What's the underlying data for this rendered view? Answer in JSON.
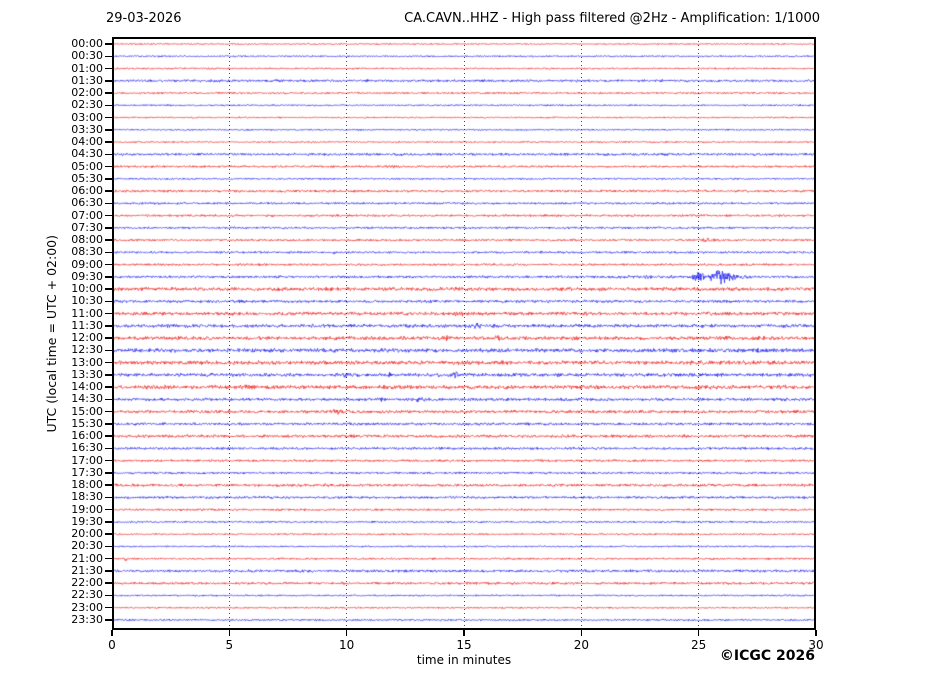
{
  "header": {
    "date_label": "29-03-2026",
    "title": "CA.CAVN..HHZ - High pass filtered @2Hz - Amplification: 1/1000"
  },
  "footer": {
    "copyright": "©ICGC 2026"
  },
  "chart_data": {
    "type": "line",
    "subtype": "helicorder-seismogram-day-plot",
    "title": "CA.CAVN..HHZ - High pass filtered @2Hz - Amplification: 1/1000",
    "date": "29-03-2026",
    "station": "CA.CAVN..HHZ",
    "filter": "High pass filtered @2Hz",
    "amplification": "1/1000",
    "xlabel": "time in minutes",
    "ylabel": "UTC (local time = UTC + 02:00)",
    "xlim": [
      0,
      30
    ],
    "x_ticks": [
      0,
      5,
      10,
      15,
      20,
      25,
      30
    ],
    "grid_minutes": [
      5,
      10,
      15,
      20,
      25
    ],
    "grid_style": "vertical dotted",
    "minutes_per_row": 30,
    "trace_colors": {
      "hour_rows": "#ee1111",
      "half_hour_rows": "#1111ee"
    },
    "event": {
      "row": "09:30",
      "start_minute": 24.5,
      "end_minute": 27.2,
      "description": "largest seismic signal of the day, blue spindle-shaped burst near minutes 25-26.5 on the 09:30 UTC line"
    },
    "bursts_format": "[start_minute, end_minute, amplitude_px]",
    "rows": [
      {
        "label": "00:00",
        "color": "red",
        "noise": 0.55,
        "bursts": []
      },
      {
        "label": "00:30",
        "color": "blue",
        "noise": 0.6,
        "bursts": []
      },
      {
        "label": "01:00",
        "color": "red",
        "noise": 0.6,
        "bursts": []
      },
      {
        "label": "01:30",
        "color": "blue",
        "noise": 0.95,
        "bursts": []
      },
      {
        "label": "02:00",
        "color": "red",
        "noise": 0.75,
        "bursts": []
      },
      {
        "label": "02:30",
        "color": "blue",
        "noise": 0.6,
        "bursts": []
      },
      {
        "label": "03:00",
        "color": "red",
        "noise": 0.55,
        "bursts": []
      },
      {
        "label": "03:30",
        "color": "blue",
        "noise": 0.6,
        "bursts": []
      },
      {
        "label": "04:00",
        "color": "red",
        "noise": 0.6,
        "bursts": []
      },
      {
        "label": "04:30",
        "color": "blue",
        "noise": 0.95,
        "bursts": []
      },
      {
        "label": "05:00",
        "color": "red",
        "noise": 0.8,
        "bursts": [
          [
            11.5,
            12.4,
            1.3
          ]
        ]
      },
      {
        "label": "05:30",
        "color": "blue",
        "noise": 0.65,
        "bursts": []
      },
      {
        "label": "06:00",
        "color": "red",
        "noise": 0.9,
        "bursts": []
      },
      {
        "label": "06:30",
        "color": "blue",
        "noise": 0.8,
        "bursts": []
      },
      {
        "label": "07:00",
        "color": "red",
        "noise": 0.85,
        "bursts": []
      },
      {
        "label": "07:30",
        "color": "blue",
        "noise": 0.8,
        "bursts": []
      },
      {
        "label": "08:00",
        "color": "red",
        "noise": 0.8,
        "bursts": [
          [
            24.7,
            26.0,
            1.7
          ]
        ]
      },
      {
        "label": "08:30",
        "color": "blue",
        "noise": 0.8,
        "bursts": [
          [
            9.2,
            9.6,
            1.3
          ]
        ]
      },
      {
        "label": "09:00",
        "color": "red",
        "noise": 0.8,
        "bursts": []
      },
      {
        "label": "09:30",
        "color": "blue",
        "noise": 0.9,
        "bursts": [
          [
            21.0,
            24.5,
            1.1
          ],
          [
            24.5,
            25.4,
            4.5
          ],
          [
            25.3,
            25.8,
            3.2
          ],
          [
            25.6,
            26.3,
            8.5
          ],
          [
            26.1,
            26.7,
            5.0
          ],
          [
            26.6,
            27.4,
            2.0
          ]
        ]
      },
      {
        "label": "10:00",
        "color": "red",
        "noise": 1.4,
        "bursts": []
      },
      {
        "label": "10:30",
        "color": "blue",
        "noise": 1.1,
        "bursts": []
      },
      {
        "label": "11:00",
        "color": "red",
        "noise": 1.3,
        "bursts": [
          [
            14.5,
            15.5,
            1.8
          ]
        ]
      },
      {
        "label": "11:30",
        "color": "blue",
        "noise": 1.3,
        "bursts": [
          [
            15.2,
            15.9,
            1.7
          ]
        ]
      },
      {
        "label": "12:00",
        "color": "red",
        "noise": 1.4,
        "bursts": [
          [
            14.0,
            14.6,
            1.7
          ],
          [
            16.2,
            16.8,
            1.6
          ],
          [
            27.1,
            27.8,
            1.5
          ]
        ]
      },
      {
        "label": "12:30",
        "color": "blue",
        "noise": 1.5,
        "bursts": []
      },
      {
        "label": "13:00",
        "color": "red",
        "noise": 1.5,
        "bursts": []
      },
      {
        "label": "13:30",
        "color": "blue",
        "noise": 1.3,
        "bursts": [
          [
            9.6,
            10.4,
            2.1
          ],
          [
            11.5,
            12.0,
            1.9
          ],
          [
            14.3,
            14.9,
            2.1
          ]
        ]
      },
      {
        "label": "14:00",
        "color": "red",
        "noise": 1.5,
        "bursts": [
          [
            5.2,
            6.2,
            1.8
          ]
        ]
      },
      {
        "label": "14:30",
        "color": "blue",
        "noise": 1.1,
        "bursts": [
          [
            11.2,
            11.8,
            2.1
          ],
          [
            12.9,
            13.4,
            1.9
          ]
        ]
      },
      {
        "label": "15:00",
        "color": "red",
        "noise": 1.2,
        "bursts": [
          [
            9.2,
            9.9,
            1.7
          ]
        ]
      },
      {
        "label": "15:30",
        "color": "blue",
        "noise": 1.0,
        "bursts": []
      },
      {
        "label": "16:00",
        "color": "red",
        "noise": 1.1,
        "bursts": []
      },
      {
        "label": "16:30",
        "color": "blue",
        "noise": 0.95,
        "bursts": []
      },
      {
        "label": "17:00",
        "color": "red",
        "noise": 0.85,
        "bursts": []
      },
      {
        "label": "17:30",
        "color": "blue",
        "noise": 0.8,
        "bursts": []
      },
      {
        "label": "18:00",
        "color": "red",
        "noise": 1.0,
        "bursts": [
          [
            29.3,
            29.9,
            1.4
          ]
        ]
      },
      {
        "label": "18:30",
        "color": "blue",
        "noise": 0.9,
        "bursts": []
      },
      {
        "label": "19:00",
        "color": "red",
        "noise": 0.8,
        "bursts": []
      },
      {
        "label": "19:30",
        "color": "blue",
        "noise": 0.7,
        "bursts": []
      },
      {
        "label": "20:00",
        "color": "red",
        "noise": 0.65,
        "bursts": []
      },
      {
        "label": "20:30",
        "color": "blue",
        "noise": 0.6,
        "bursts": []
      },
      {
        "label": "21:00",
        "color": "red",
        "noise": 0.7,
        "bursts": [
          [
            0.2,
            0.8,
            1.3
          ]
        ]
      },
      {
        "label": "21:30",
        "color": "blue",
        "noise": 1.0,
        "bursts": []
      },
      {
        "label": "22:00",
        "color": "red",
        "noise": 0.95,
        "bursts": []
      },
      {
        "label": "22:30",
        "color": "blue",
        "noise": 0.6,
        "bursts": []
      },
      {
        "label": "23:00",
        "color": "red",
        "noise": 0.6,
        "bursts": []
      },
      {
        "label": "23:30",
        "color": "blue",
        "noise": 0.7,
        "bursts": []
      }
    ]
  }
}
